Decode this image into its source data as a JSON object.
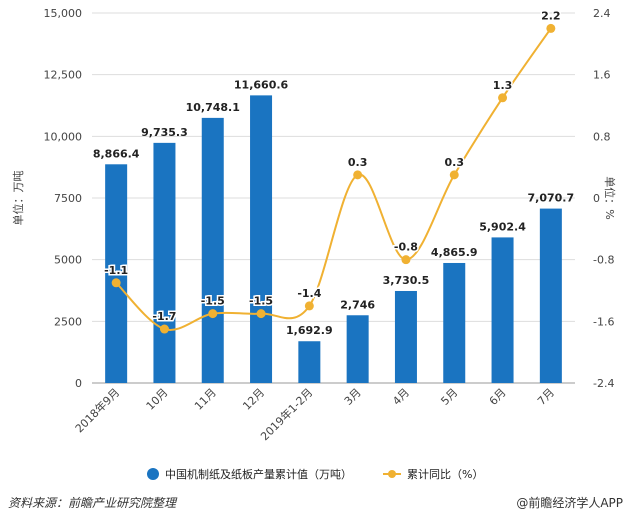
{
  "chart_data": {
    "type": "bar+line",
    "categories": [
      "2018年9月",
      "10月",
      "11月",
      "12月",
      "2019年1-2月",
      "3月",
      "4月",
      "5月",
      "6月",
      "7月"
    ],
    "series": [
      {
        "name": "中国机制纸及纸板产量累计值（万吨）",
        "type": "bar",
        "axis": "left",
        "color": "#1a74c1",
        "values": [
          8866.4,
          9735.3,
          10748.1,
          11660.6,
          1692.9,
          2746,
          3730.5,
          4865.9,
          5902.4,
          7070.7
        ],
        "labels": [
          "8,866.4",
          "9,735.3",
          "10,748.1",
          "11,660.6",
          "1,692.9",
          "2,746",
          "3,730.5",
          "4,865.9",
          "5,902.4",
          "7,070.7"
        ]
      },
      {
        "name": "累计同比（%）",
        "type": "line",
        "axis": "right",
        "color": "#f0b132",
        "values": [
          -1.1,
          -1.7,
          -1.5,
          -1.5,
          -1.4,
          0.3,
          -0.8,
          0.3,
          1.3,
          2.2
        ],
        "labels": [
          "-1.1",
          "-1.7",
          "-1.5",
          "-1.5",
          "-1.4",
          "0.3",
          "-0.8",
          "0.3",
          "1.3",
          "2.2"
        ]
      }
    ],
    "ylabel_left": "单位：万吨",
    "ylabel_right": "单位：%",
    "ylim_left": [
      0,
      15000
    ],
    "ylim_right": [
      -2.4,
      2.4
    ],
    "yticks_left": [
      "0",
      "2500",
      "5000",
      "7500",
      "10,000",
      "12,500",
      "15,000"
    ],
    "yticks_right": [
      "-2.4",
      "-1.6",
      "-0.8",
      "0",
      "0.8",
      "1.6",
      "2.4"
    ],
    "grid": true,
    "legend": "bottom"
  },
  "footer": {
    "source": "资料来源：前瞻产业研究院整理",
    "credit": "@前瞻经济学人APP"
  }
}
